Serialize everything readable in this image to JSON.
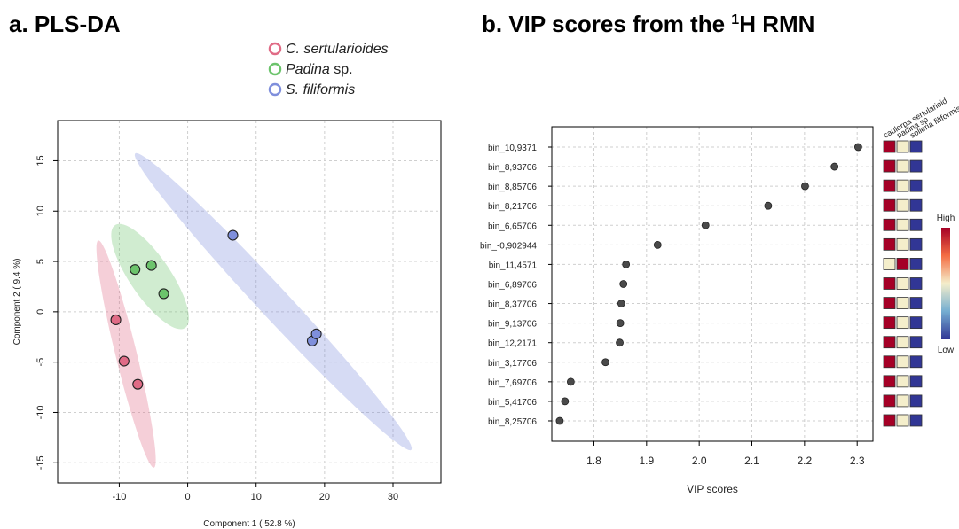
{
  "panel_a": {
    "title": "a. PLS-DA"
  },
  "panel_b": {
    "title_main": "b. VIP scores from the ",
    "title_sup": "1",
    "title_rest": "H RMN"
  },
  "legend": {
    "items": [
      {
        "italic": "C. sertularioides",
        "rest": "",
        "color": "#e06b86"
      },
      {
        "italic": "Padina",
        "rest": " sp.",
        "color": "#6cc46c"
      },
      {
        "italic": "S. filiformis",
        "rest": "",
        "color": "#7f8fdc"
      }
    ]
  },
  "heatmap_headers": [
    "caulerpa sertularioid",
    "padina sp",
    "solieria filiformis"
  ],
  "color_scale": {
    "high": "High",
    "low": "Low",
    "colors": [
      "#a50026",
      "#f4eecb",
      "#313695"
    ]
  },
  "chart_data": [
    {
      "type": "scatter",
      "title": "a. PLS-DA",
      "xlabel": "Component 1 ( 52.8 %)",
      "ylabel": "Component 2 ( 9.4 %)",
      "xlim": [
        -19,
        37
      ],
      "ylim": [
        -17,
        19
      ],
      "xticks": [
        -10,
        0,
        10,
        20,
        30
      ],
      "yticks": [
        -15,
        -10,
        -5,
        0,
        5,
        10,
        15
      ],
      "grid": true,
      "legend_position": "top",
      "series": [
        {
          "name": "C. sertularioides",
          "color": "#e06b86",
          "points": [
            [
              -10.5,
              -0.8
            ],
            [
              -9.3,
              -4.9
            ],
            [
              -7.3,
              -7.2
            ]
          ],
          "ellipse": {
            "center": [
              -9.0,
              -4.2
            ],
            "semi_major": 12.0,
            "semi_minor": 1.5,
            "angle_deg": -70
          }
        },
        {
          "name": "Padina sp.",
          "color": "#6cc46c",
          "points": [
            [
              -7.7,
              4.2
            ],
            [
              -5.3,
              4.6
            ],
            [
              -3.5,
              1.8
            ]
          ],
          "ellipse": {
            "center": [
              -5.5,
              3.5
            ],
            "semi_major": 7.3,
            "semi_minor": 2.5,
            "angle_deg": -42
          }
        },
        {
          "name": "S. filiformis",
          "color": "#7f8fdc",
          "points": [
            [
              6.6,
              7.6
            ],
            [
              18.2,
              -2.9
            ],
            [
              18.8,
              -2.2
            ]
          ],
          "ellipse": {
            "center": [
              12.5,
              1.0
            ],
            "semi_major": 25.0,
            "semi_minor": 1.8,
            "angle_deg": -36
          }
        }
      ]
    },
    {
      "type": "scatter",
      "title": "b. VIP scores from the 1H RMN",
      "xlabel": "VIP scores",
      "xlim": [
        1.72,
        2.33
      ],
      "xticks": [
        1.8,
        1.9,
        2.0,
        2.1,
        2.2,
        2.3
      ],
      "grid": true,
      "categories": [
        "bin_10,9371",
        "bin_8,93706",
        "bin_8,85706",
        "bin_8,21706",
        "bin_6,65706",
        "bin_-0,902944",
        "bin_11,4571",
        "bin_6,89706",
        "bin_8,37706",
        "bin_9,13706",
        "bin_12,2171",
        "bin_3,17706",
        "bin_7,69706",
        "bin_5,41706",
        "bin_8,25706"
      ],
      "values": [
        2.302,
        2.257,
        2.201,
        2.131,
        2.012,
        1.921,
        1.861,
        1.856,
        1.852,
        1.85,
        1.849,
        1.822,
        1.756,
        1.745,
        1.735
      ],
      "heatmap_columns": [
        "caulerpa sertularioid",
        "padina sp",
        "solieria filiformis"
      ],
      "heatmap": [
        [
          "high",
          "mid",
          "low"
        ],
        [
          "high",
          "mid",
          "low"
        ],
        [
          "high",
          "mid",
          "low"
        ],
        [
          "high",
          "mid",
          "low"
        ],
        [
          "high",
          "mid",
          "low"
        ],
        [
          "high",
          "mid",
          "low"
        ],
        [
          "mid",
          "high",
          "low"
        ],
        [
          "high",
          "mid",
          "low"
        ],
        [
          "high",
          "mid",
          "low"
        ],
        [
          "high",
          "mid",
          "low"
        ],
        [
          "high",
          "mid",
          "low"
        ],
        [
          "high",
          "mid",
          "low"
        ],
        [
          "high",
          "mid",
          "low"
        ],
        [
          "high",
          "mid",
          "low"
        ],
        [
          "high",
          "mid",
          "low"
        ]
      ]
    }
  ]
}
